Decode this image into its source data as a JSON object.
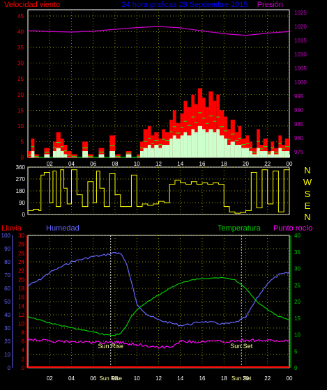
{
  "header": {
    "left_label": "Velocidad viento",
    "center_label": "24 hora graficas  28 Septiembre 2015",
    "right_label": "Presión"
  },
  "lower_header": {
    "lluvia": "Lluvia",
    "humedad": "Humedad",
    "temperatura": "Temperatura",
    "punto_rocio": "Punto rocío"
  },
  "direction_labels": [
    "N",
    "W",
    "S",
    "E",
    "N"
  ],
  "sun_labels": {
    "rise": "Sun Rise",
    "set": "Sun Set"
  },
  "colors": {
    "wind": "#ff0000",
    "gust_mid": "#00ff00",
    "wind_light": "#ccffcc",
    "pressure": "#cc00cc",
    "direction": "#ffff00",
    "humidity": "#6666ff",
    "temperature": "#00cc00",
    "dewpoint": "#ff00ff",
    "rain": "#ff0000",
    "header_blue": "#0000ff",
    "grid": "#c8c800"
  },
  "chart_data": [
    {
      "type": "area",
      "panel": "wind_pressure",
      "x_ticks": [
        "02",
        "04",
        "06",
        "08",
        "10",
        "12",
        "14",
        "16",
        "18",
        "20",
        "22",
        "00"
      ],
      "y_left_ticks": [
        "0",
        "5",
        "10",
        "15",
        "20",
        "25",
        "30",
        "35",
        "40",
        "45"
      ],
      "y_right_ticks": [
        "975",
        "980",
        "985",
        "990",
        "995",
        "1000",
        "1005",
        "1010",
        "1015",
        "1020",
        "1025"
      ],
      "ylim_left": [
        0,
        47
      ],
      "ylim_right": [
        973,
        1026
      ],
      "wind_hours": [
        0,
        0.3,
        0.6,
        1,
        1.5,
        2,
        2.3,
        2.6,
        3,
        3.3,
        3.6,
        4,
        4.5,
        5,
        5.5,
        6,
        6.5,
        7,
        7.5,
        8,
        8.5,
        9,
        9.5,
        10,
        10.3,
        10.6,
        11,
        11.3,
        11.6,
        12,
        12.3,
        12.6,
        13,
        13.3,
        13.6,
        14,
        14.3,
        14.6,
        15,
        15.3,
        15.6,
        16,
        16.3,
        16.6,
        17,
        17.3,
        17.6,
        18,
        18.3,
        18.6,
        19,
        19.3,
        19.6,
        20,
        20.3,
        20.6,
        21,
        21.3,
        21.6,
        22,
        22.3,
        22.6,
        23,
        23.3,
        23.6,
        24
      ],
      "wind_gust": [
        2,
        6,
        1,
        0,
        3,
        0,
        5,
        8,
        6,
        4,
        2,
        1,
        0,
        5,
        1,
        0,
        3,
        0,
        7,
        1,
        0,
        2,
        0,
        1,
        5,
        9,
        10,
        7,
        8,
        6,
        9,
        8,
        12,
        15,
        11,
        14,
        18,
        16,
        20,
        17,
        22,
        19,
        16,
        21,
        18,
        20,
        15,
        13,
        9,
        12,
        8,
        10,
        6,
        7,
        5,
        3,
        9,
        4,
        6,
        2,
        5,
        3,
        7,
        4,
        6,
        3
      ],
      "wind_avg": [
        0,
        2,
        0,
        0,
        1,
        0,
        2,
        3,
        2,
        1,
        0,
        0,
        0,
        2,
        0,
        0,
        1,
        0,
        2,
        0,
        0,
        1,
        0,
        0,
        2,
        3,
        4,
        3,
        4,
        3,
        4,
        4,
        6,
        7,
        6,
        7,
        8,
        7,
        9,
        8,
        10,
        9,
        8,
        9,
        8,
        9,
        7,
        6,
        4,
        5,
        4,
        4,
        3,
        3,
        2,
        1,
        3,
        2,
        2,
        1,
        2,
        1,
        3,
        2,
        2,
        1
      ],
      "pressure_hours": [
        0,
        2,
        4,
        6,
        8,
        10,
        12,
        14,
        16,
        18,
        20,
        22,
        24
      ],
      "pressure": [
        1018.5,
        1018.2,
        1018.0,
        1018.3,
        1019.0,
        1019.6,
        1020.0,
        1019.5,
        1018.4,
        1017.4,
        1016.8,
        1017.6,
        1018.2
      ]
    },
    {
      "type": "line",
      "panel": "wind_direction",
      "y_ticks": [
        "0",
        "90",
        "180",
        "270",
        "360"
      ],
      "ylim": [
        0,
        360
      ],
      "hours": [
        0,
        0.5,
        1,
        1.2,
        1.5,
        2,
        2.3,
        2.6,
        3,
        3.3,
        3.6,
        4,
        4.5,
        5,
        5.5,
        6,
        6.3,
        6.6,
        7,
        7.5,
        8,
        8.5,
        9,
        9.5,
        10,
        10.5,
        11,
        11.5,
        12,
        12.5,
        13,
        13.5,
        14,
        14.5,
        15,
        15.5,
        16,
        16.5,
        17,
        17.5,
        18,
        18.5,
        19,
        19.5,
        20,
        20.5,
        21,
        21.5,
        22,
        22.5,
        23,
        23.5,
        24
      ],
      "direction": [
        30,
        40,
        30,
        300,
        320,
        90,
        330,
        60,
        340,
        200,
        80,
        340,
        150,
        60,
        250,
        90,
        330,
        200,
        60,
        310,
        150,
        60,
        60,
        300,
        60,
        80,
        70,
        80,
        100,
        90,
        230,
        260,
        240,
        230,
        250,
        230,
        240,
        230,
        240,
        230,
        60,
        20,
        10,
        15,
        30,
        320,
        50,
        340,
        80,
        330,
        20,
        340,
        30
      ]
    },
    {
      "type": "line",
      "panel": "humidity_temperature",
      "y_humidity_ticks": [
        "0",
        "10",
        "20",
        "30",
        "40",
        "50",
        "60",
        "70",
        "80",
        "90",
        "100"
      ],
      "y_rain_ticks": [
        "0",
        "2",
        "4",
        "6",
        "8",
        "10",
        "12",
        "14",
        "16",
        "18",
        "20",
        "22",
        "24",
        "26",
        "28",
        "30"
      ],
      "y_temp_ticks": [
        "0",
        "5",
        "10",
        "15",
        "20",
        "25",
        "30",
        "35",
        "40"
      ],
      "ylim_humidity": [
        0,
        100
      ],
      "ylim_temp": [
        0,
        40
      ],
      "hours": [
        0,
        1,
        2,
        3,
        4,
        5,
        6,
        7,
        8,
        8.5,
        9,
        9.5,
        10,
        11,
        12,
        13,
        14,
        15,
        16,
        17,
        18,
        19,
        20,
        21,
        22,
        23,
        24
      ],
      "humidity": [
        62,
        66,
        72,
        76,
        80,
        82,
        84,
        85,
        87,
        86,
        80,
        65,
        48,
        40,
        36,
        34,
        32,
        33,
        35,
        34,
        33,
        34,
        38,
        52,
        64,
        70,
        72
      ],
      "temperature": [
        15.5,
        14.5,
        13.5,
        12.8,
        12.0,
        11.5,
        10.8,
        10.0,
        9.8,
        10.3,
        12.5,
        15.5,
        17.5,
        20,
        22,
        24,
        25.5,
        26.5,
        27,
        27,
        27.2,
        26.5,
        24,
        20,
        17.5,
        15.5,
        14.5
      ],
      "dewpoint": [
        8.8,
        8.4,
        8.0,
        7.9,
        7.9,
        7.7,
        7.6,
        7.6,
        7.7,
        7.5,
        7.3,
        7.2,
        7.0,
        6.6,
        6.3,
        6.2,
        8.0,
        7.9,
        7.9,
        8.1,
        7.8,
        8.1,
        8.4,
        8.3,
        8.2,
        8.1,
        8.0
      ],
      "rain": [
        0,
        0,
        0,
        0,
        0,
        0,
        0,
        0,
        0,
        0,
        0,
        0,
        0,
        0,
        0,
        0,
        0,
        0,
        0,
        0,
        0,
        0,
        0,
        0,
        0,
        0,
        0
      ],
      "sunrise_hour": 7.6,
      "sunset_hour": 19.6
    }
  ]
}
